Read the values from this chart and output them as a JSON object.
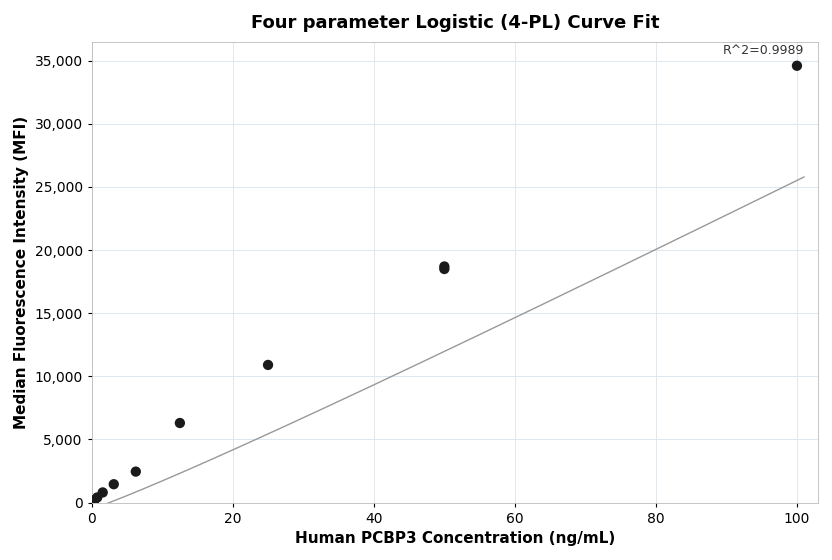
{
  "title": "Four parameter Logistic (4-PL) Curve Fit",
  "xlabel": "Human PCBP3 Concentration (ng/mL)",
  "ylabel": "Median Fluorescence Intensity (MFI)",
  "scatter_x": [
    0.39,
    0.78,
    1.56,
    3.125,
    6.25,
    12.5,
    25,
    50,
    50,
    100
  ],
  "scatter_y": [
    200,
    400,
    800,
    1450,
    2450,
    6300,
    10900,
    18700,
    18500,
    34600
  ],
  "xlim": [
    0,
    103
  ],
  "ylim": [
    0,
    36500
  ],
  "yticks": [
    0,
    5000,
    10000,
    15000,
    20000,
    25000,
    30000,
    35000
  ],
  "xticks": [
    0,
    20,
    40,
    60,
    80,
    100
  ],
  "r2_text": "R^2=0.9989",
  "curve_color": "#999999",
  "scatter_color": "#1a1a1a",
  "grid_color": "#dde8f0",
  "background_color": "#ffffff",
  "title_fontsize": 13,
  "label_fontsize": 11,
  "tick_fontsize": 10,
  "annotation_fontsize": 9,
  "4pl_A": -500,
  "4pl_B": 1.08,
  "4pl_C": 3000,
  "4pl_D": 1050000
}
